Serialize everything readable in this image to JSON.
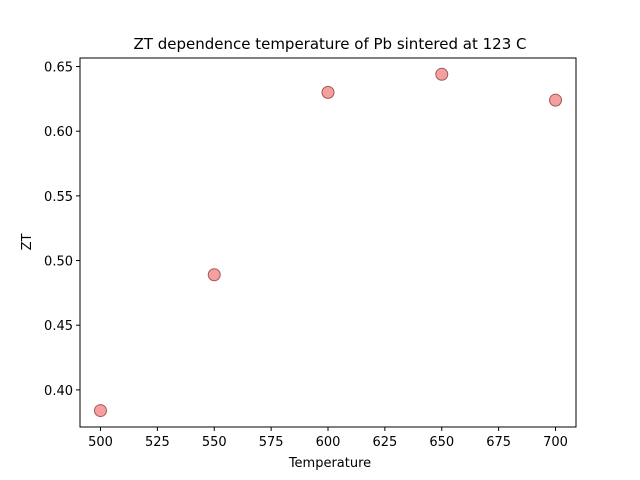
{
  "chart_data": {
    "type": "scatter",
    "title": "ZT dependence temperature of Pb sintered at 123 C",
    "xlabel": "Temperature",
    "ylabel": "ZT",
    "xlim": [
      491,
      709
    ],
    "ylim": [
      0.3713,
      0.6566
    ],
    "xticks": [
      500,
      525,
      550,
      575,
      600,
      625,
      650,
      675,
      700
    ],
    "xtick_labels": [
      "500",
      "525",
      "550",
      "575",
      "600",
      "625",
      "650",
      "675",
      "700"
    ],
    "yticks": [
      0.4,
      0.45,
      0.5,
      0.55,
      0.6,
      0.65
    ],
    "ytick_labels": [
      "0.40",
      "0.45",
      "0.50",
      "0.55",
      "0.60",
      "0.65"
    ],
    "grid": false,
    "series": [
      {
        "x": [
          500,
          550,
          600,
          650,
          700
        ],
        "y": [
          0.384,
          0.489,
          0.63,
          0.644,
          0.624
        ],
        "marker_fill": "#f08080",
        "marker_edge": "#8b3a3a"
      }
    ]
  }
}
